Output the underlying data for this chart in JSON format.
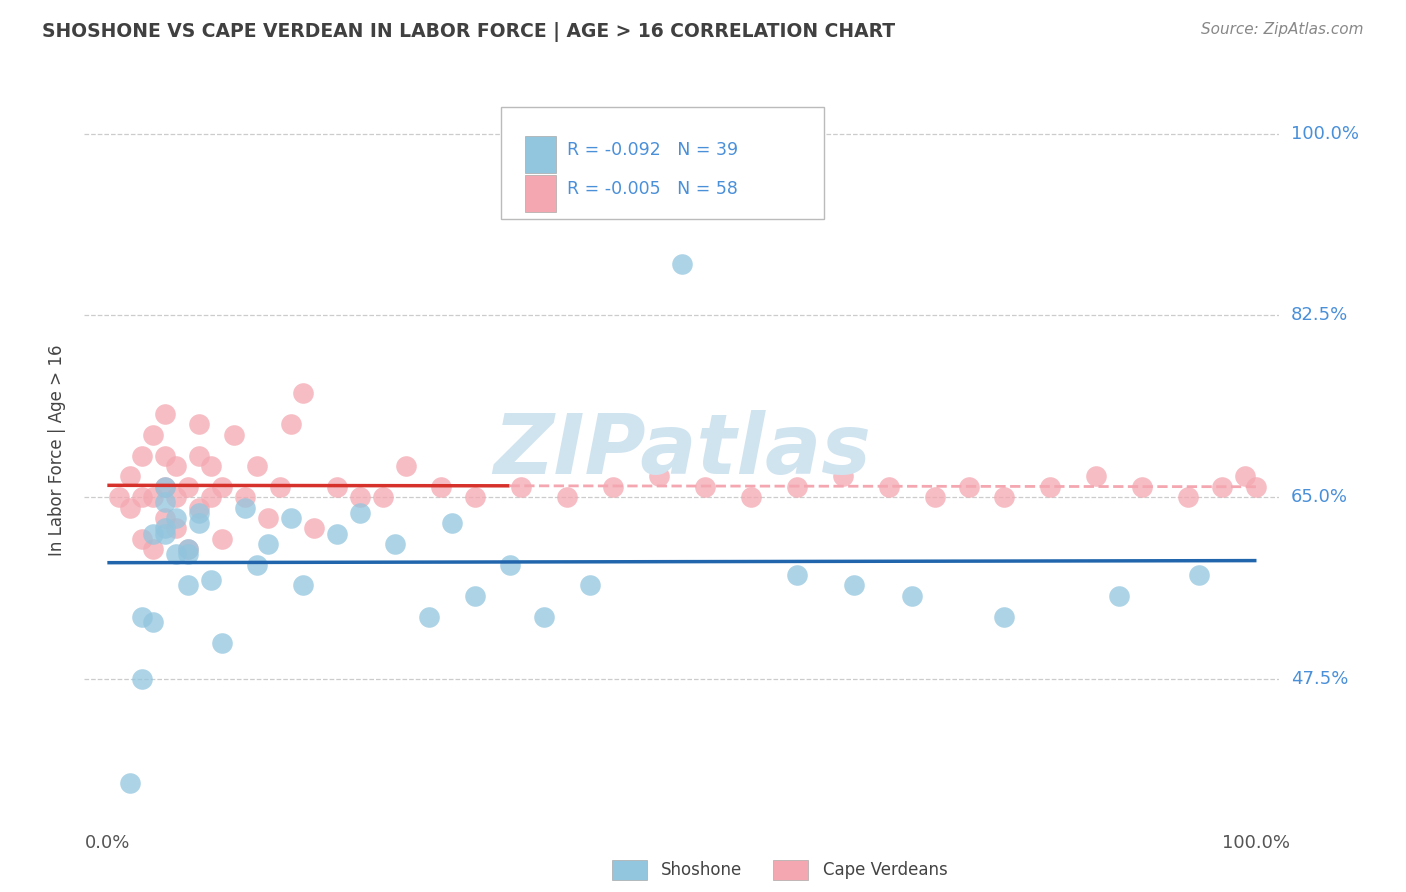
{
  "title": "SHOSHONE VS CAPE VERDEAN IN LABOR FORCE | AGE > 16 CORRELATION CHART",
  "source_text": "Source: ZipAtlas.com",
  "ylabel": "In Labor Force | Age > 16",
  "xlim": [
    -0.02,
    1.02
  ],
  "ylim": [
    0.33,
    1.06
  ],
  "x_ticks": [
    0.0,
    1.0
  ],
  "x_tick_labels": [
    "0.0%",
    "100.0%"
  ],
  "y_tick_labels": [
    "47.5%",
    "65.0%",
    "82.5%",
    "100.0%"
  ],
  "y_ticks": [
    0.475,
    0.65,
    0.825,
    1.0
  ],
  "shoshone_color": "#92c5de",
  "cape_verdean_color": "#f4a7b0",
  "trend_shoshone_color": "#2166ac",
  "trend_cape_verdean_color": "#d6312b",
  "background_color": "#ffffff",
  "grid_color": "#cccccc",
  "watermark_text": "ZIPatlas",
  "watermark_color": "#d0e4f0",
  "title_color": "#404040",
  "axis_label_color": "#4a90d9",
  "shoshone_x": [
    0.02,
    0.03,
    0.04,
    0.04,
    0.05,
    0.05,
    0.05,
    0.06,
    0.06,
    0.07,
    0.07,
    0.08,
    0.08,
    0.09,
    0.1,
    0.12,
    0.13,
    0.14,
    0.16,
    0.17,
    0.2,
    0.22,
    0.25,
    0.28,
    0.35,
    0.38,
    0.42,
    0.5,
    0.6,
    0.65,
    0.7,
    0.78,
    0.88,
    0.95,
    0.03,
    0.05,
    0.07,
    0.3,
    0.32
  ],
  "shoshone_y": [
    0.375,
    0.475,
    0.53,
    0.615,
    0.62,
    0.645,
    0.66,
    0.595,
    0.63,
    0.6,
    0.565,
    0.625,
    0.635,
    0.57,
    0.51,
    0.64,
    0.585,
    0.605,
    0.63,
    0.565,
    0.615,
    0.635,
    0.605,
    0.535,
    0.585,
    0.535,
    0.565,
    0.875,
    0.575,
    0.565,
    0.555,
    0.535,
    0.555,
    0.575,
    0.535,
    0.615,
    0.595,
    0.625,
    0.555
  ],
  "cape_verdean_x": [
    0.01,
    0.02,
    0.02,
    0.03,
    0.03,
    0.03,
    0.04,
    0.04,
    0.04,
    0.05,
    0.05,
    0.05,
    0.05,
    0.06,
    0.06,
    0.06,
    0.07,
    0.07,
    0.08,
    0.08,
    0.08,
    0.09,
    0.09,
    0.1,
    0.1,
    0.11,
    0.12,
    0.13,
    0.14,
    0.15,
    0.16,
    0.17,
    0.18,
    0.2,
    0.22,
    0.24,
    0.26,
    0.29,
    0.32,
    0.36,
    0.4,
    0.44,
    0.48,
    0.52,
    0.56,
    0.6,
    0.64,
    0.68,
    0.72,
    0.75,
    0.78,
    0.82,
    0.86,
    0.9,
    0.94,
    0.97,
    0.99,
    1.0
  ],
  "cape_verdean_y": [
    0.65,
    0.64,
    0.67,
    0.61,
    0.65,
    0.69,
    0.6,
    0.65,
    0.71,
    0.63,
    0.66,
    0.69,
    0.73,
    0.62,
    0.65,
    0.68,
    0.6,
    0.66,
    0.64,
    0.69,
    0.72,
    0.65,
    0.68,
    0.61,
    0.66,
    0.71,
    0.65,
    0.68,
    0.63,
    0.66,
    0.72,
    0.75,
    0.62,
    0.66,
    0.65,
    0.65,
    0.68,
    0.66,
    0.65,
    0.66,
    0.65,
    0.66,
    0.67,
    0.66,
    0.65,
    0.66,
    0.67,
    0.66,
    0.65,
    0.66,
    0.65,
    0.66,
    0.67,
    0.66,
    0.65,
    0.66,
    0.67,
    0.66
  ]
}
